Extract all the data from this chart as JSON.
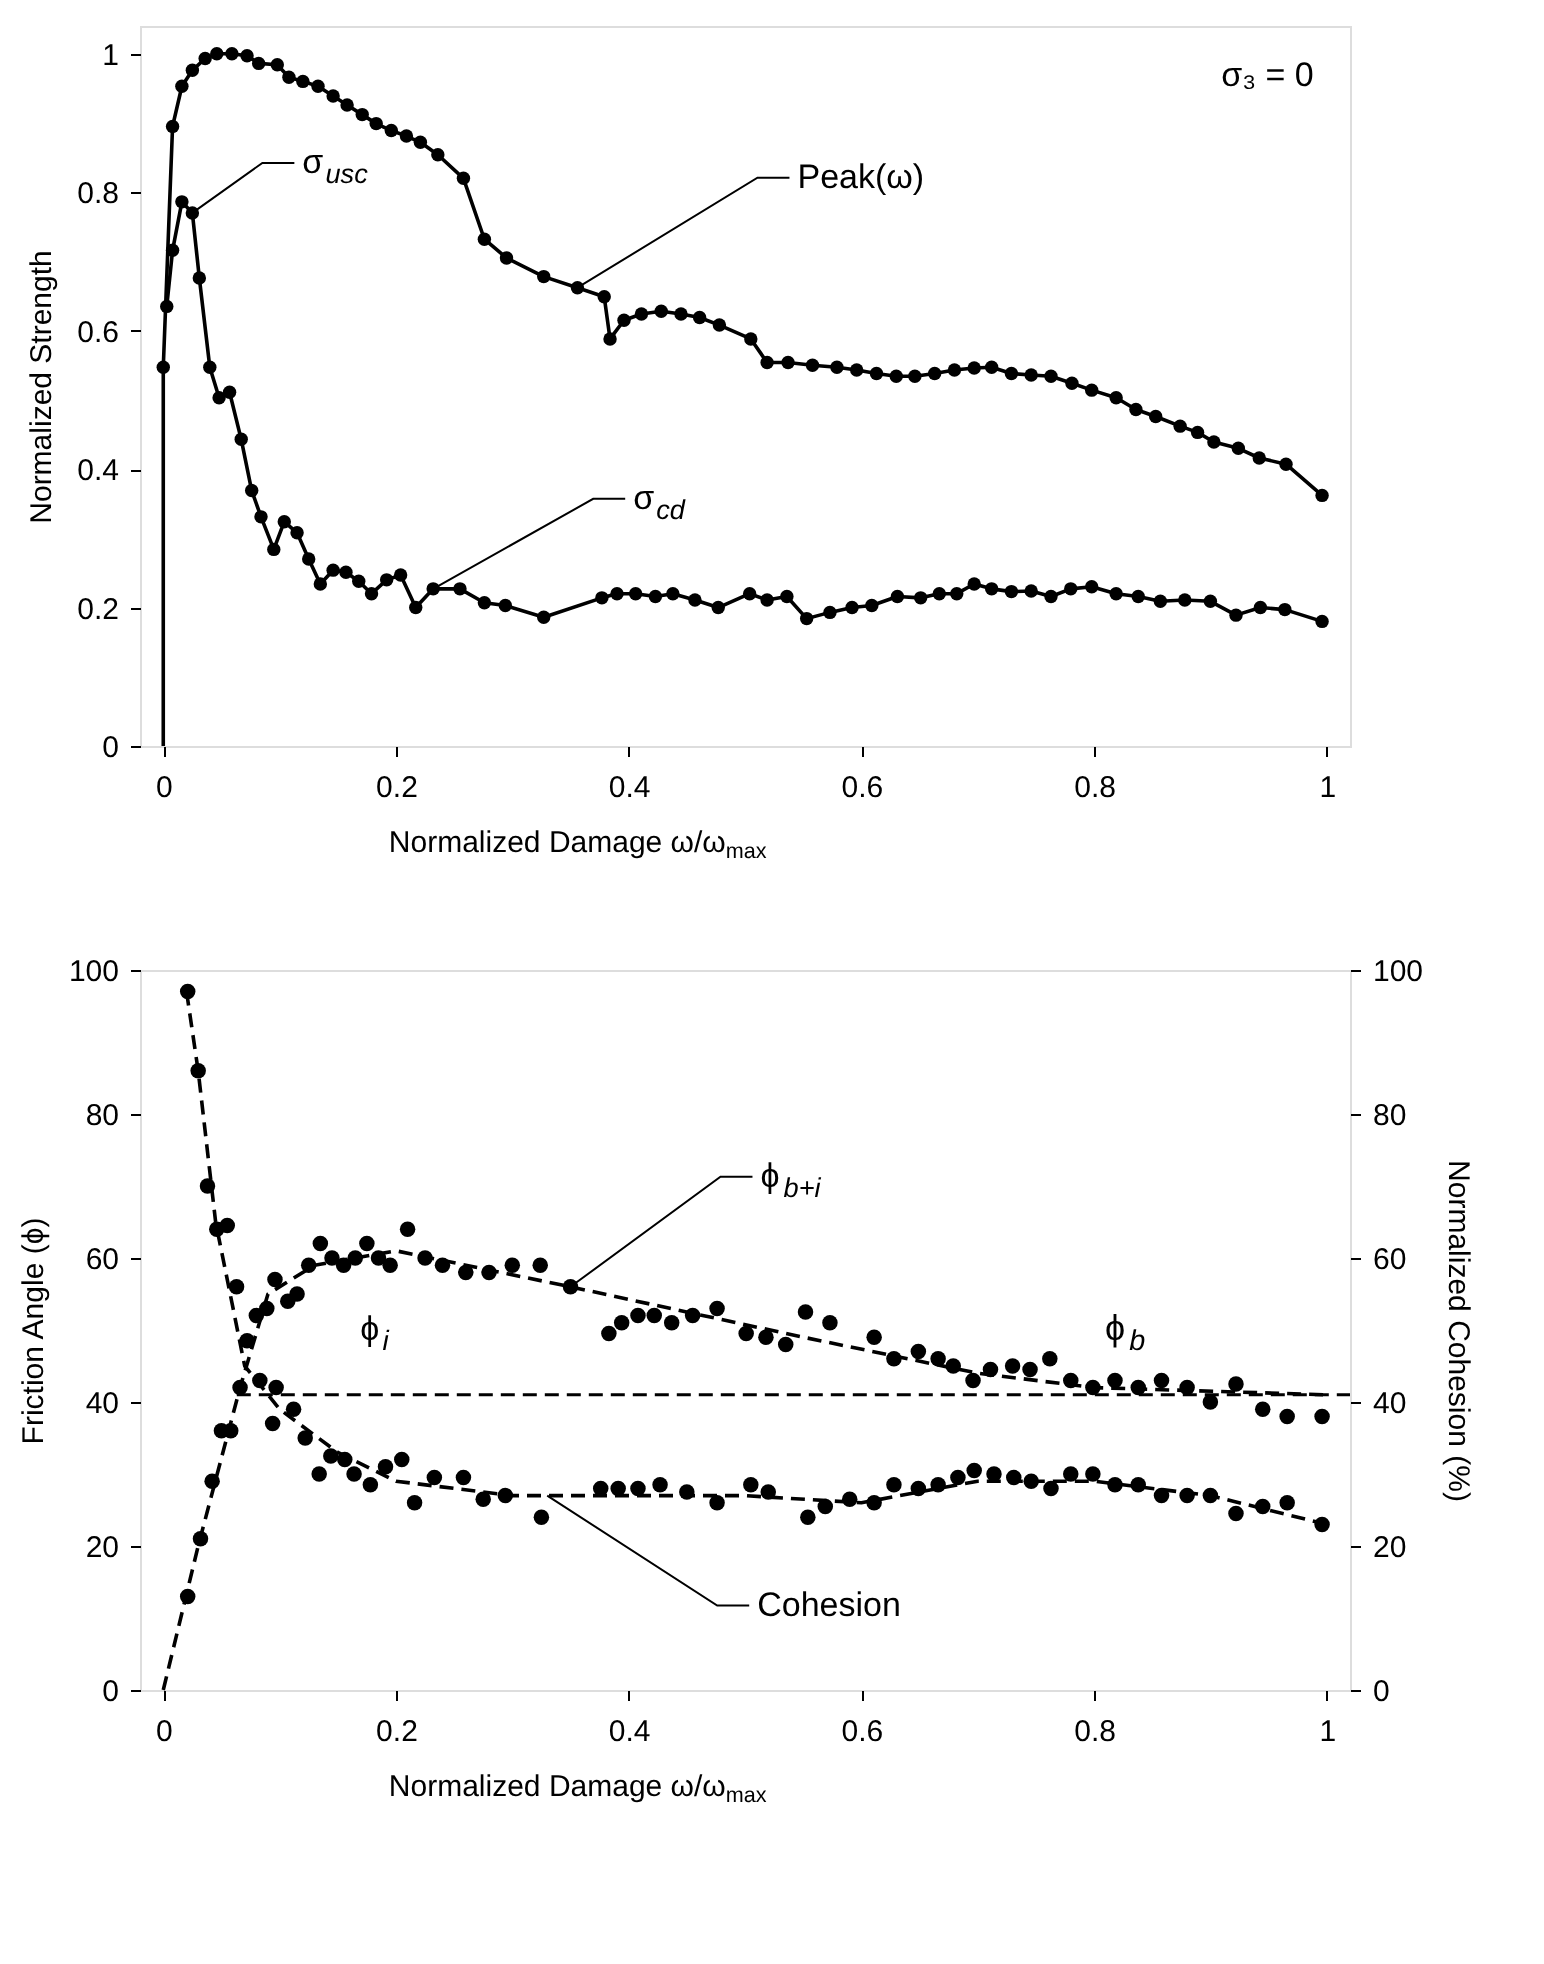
{
  "chart_data": [
    {
      "type": "line",
      "xlabel": "Normalized Damage ω/ω$_{max}$",
      "ylabel": "Normalized Strength",
      "xlim": [
        -0.02,
        1.02
      ],
      "ylim": [
        0,
        1.04
      ],
      "xticks": [
        0,
        0.2,
        0.4,
        0.6,
        0.8,
        1
      ],
      "yticks": [
        0,
        0.2,
        0.4,
        0.6,
        0.8,
        1
      ],
      "grid": false,
      "series": [
        {
          "color": "#000000",
          "x": [
            0,
            0
          ],
          "values": [
            0,
            0.547
          ]
        },
        {
          "marker": "circle",
          "color": "#000000",
          "x": [
            0,
            0.008,
            0.016,
            0.025,
            0.036,
            0.046,
            0.059,
            0.072,
            0.082,
            0.098,
            0.108,
            0.12,
            0.133,
            0.146,
            0.158,
            0.171,
            0.183,
            0.196,
            0.209,
            0.221,
            0.236,
            0.258,
            0.276,
            0.295,
            0.327,
            0.356,
            0.379,
            0.384,
            0.396,
            0.411,
            0.428,
            0.445,
            0.461,
            0.478,
            0.505,
            0.519,
            0.537,
            0.558,
            0.579,
            0.596,
            0.613,
            0.63,
            0.646,
            0.663,
            0.68,
            0.697,
            0.712,
            0.729,
            0.746,
            0.763,
            0.781,
            0.798,
            0.819,
            0.836,
            0.853,
            0.874,
            0.889,
            0.903,
            0.924,
            0.942,
            0.965,
            0.996
          ],
          "values": [
            0.547,
            0.895,
            0.953,
            0.976,
            0.993,
            1.0,
            1.0,
            0.997,
            0.986,
            0.984,
            0.966,
            0.96,
            0.953,
            0.939,
            0.926,
            0.912,
            0.899,
            0.889,
            0.881,
            0.872,
            0.854,
            0.82,
            0.732,
            0.705,
            0.678,
            0.662,
            0.649,
            0.588,
            0.615,
            0.624,
            0.628,
            0.624,
            0.619,
            0.608,
            0.588,
            0.554,
            0.554,
            0.55,
            0.547,
            0.543,
            0.538,
            0.534,
            0.534,
            0.538,
            0.543,
            0.546,
            0.547,
            0.538,
            0.536,
            0.534,
            0.524,
            0.514,
            0.503,
            0.486,
            0.476,
            0.462,
            0.453,
            0.439,
            0.43,
            0.416,
            0.407,
            0.362
          ]
        },
        {
          "marker": "circle",
          "color": "#000000",
          "x": [
            0.003,
            0.008,
            0.016,
            0.025,
            0.031,
            0.04,
            0.048,
            0.057,
            0.067,
            0.076,
            0.084,
            0.095,
            0.104,
            0.115,
            0.125,
            0.135,
            0.146,
            0.157,
            0.168,
            0.179,
            0.192,
            0.204,
            0.217,
            0.232,
            0.255,
            0.276,
            0.294,
            0.327,
            0.377,
            0.39,
            0.406,
            0.423,
            0.438,
            0.457,
            0.477,
            0.504,
            0.519,
            0.536,
            0.553,
            0.573,
            0.592,
            0.609,
            0.631,
            0.651,
            0.667,
            0.682,
            0.697,
            0.712,
            0.729,
            0.746,
            0.763,
            0.78,
            0.798,
            0.819,
            0.838,
            0.857,
            0.878,
            0.9,
            0.922,
            0.943,
            0.964,
            0.996
          ],
          "values": [
            0.635,
            0.716,
            0.786,
            0.77,
            0.676,
            0.547,
            0.503,
            0.511,
            0.443,
            0.369,
            0.331,
            0.284,
            0.324,
            0.308,
            0.27,
            0.234,
            0.254,
            0.251,
            0.238,
            0.22,
            0.24,
            0.247,
            0.2,
            0.227,
            0.227,
            0.207,
            0.203,
            0.186,
            0.214,
            0.22,
            0.22,
            0.216,
            0.22,
            0.211,
            0.2,
            0.22,
            0.211,
            0.216,
            0.184,
            0.193,
            0.2,
            0.203,
            0.216,
            0.214,
            0.22,
            0.22,
            0.234,
            0.227,
            0.223,
            0.224,
            0.216,
            0.227,
            0.23,
            0.22,
            0.216,
            0.209,
            0.211,
            0.209,
            0.189,
            0.2,
            0.197,
            0.18
          ]
        }
      ],
      "annotations": [
        {
          "text": "σ$_{usc}$",
          "x": 0.025,
          "y": 0.77
        },
        {
          "text": "Peak(ω)",
          "x": 0.356,
          "y": 0.662
        },
        {
          "text": "σ$_{cd}$",
          "x": 0.232,
          "y": 0.227
        },
        "σ₃ = 0"
      ]
    },
    {
      "type": "scatter",
      "xlabel": "Normalized Damage ω/ω$_{max}$",
      "ylabel": "Friction Angle (ϕ)",
      "y2label": "Normalized Cohesion (%)",
      "xlim": [
        -0.02,
        1.02
      ],
      "ylim": [
        0,
        100
      ],
      "y2lim": [
        0,
        100
      ],
      "xticks": [
        0,
        0.2,
        0.4,
        0.6,
        0.8,
        1
      ],
      "yticks": [
        0,
        20,
        40,
        60,
        80,
        100
      ],
      "y2ticks": [
        0,
        20,
        40,
        60,
        80,
        100
      ],
      "grid": false,
      "series": [
        {
          "marker": "circle",
          "color": "#000000",
          "x": [
            0.021,
            0.032,
            0.042,
            0.05,
            0.058,
            0.066,
            0.08,
            0.089,
            0.096,
            0.107,
            0.115,
            0.125,
            0.135,
            0.145,
            0.155,
            0.165,
            0.175,
            0.185,
            0.195,
            0.21,
            0.225,
            0.24,
            0.26,
            0.28,
            0.3,
            0.324,
            0.35,
            0.383,
            0.394,
            0.408,
            0.422,
            0.437,
            0.455,
            0.476,
            0.501,
            0.518,
            0.535,
            0.552,
            0.573,
            0.611,
            0.628,
            0.649,
            0.666,
            0.679,
            0.696,
            0.711,
            0.73,
            0.745,
            0.762,
            0.78,
            0.799,
            0.818,
            0.838,
            0.858,
            0.88,
            0.9,
            0.922,
            0.945,
            0.966,
            0.996
          ],
          "values": [
            13,
            21,
            29,
            36,
            36,
            42,
            52,
            53,
            57,
            54,
            55,
            59,
            62,
            60,
            59,
            60,
            62,
            60,
            59,
            64,
            60,
            59,
            58,
            58,
            59,
            59,
            56,
            49.5,
            51,
            52,
            52,
            51,
            52,
            53,
            49.5,
            49,
            48,
            52.5,
            51,
            49,
            46,
            47,
            46,
            45,
            43,
            44.5,
            45,
            44.5,
            46,
            43,
            42,
            43,
            42,
            43,
            42,
            40,
            42.5,
            39,
            38,
            38
          ]
        },
        {
          "marker": "circle",
          "color": "#000000",
          "axis": "y2",
          "x": [
            0.021,
            0.03,
            0.038,
            0.046,
            0.055,
            0.063,
            0.072,
            0.083,
            0.094,
            0.097,
            0.112,
            0.122,
            0.134,
            0.144,
            0.156,
            0.164,
            0.178,
            0.191,
            0.205,
            0.216,
            0.233,
            0.258,
            0.275,
            0.294,
            0.325,
            0.376,
            0.391,
            0.408,
            0.427,
            0.45,
            0.476,
            0.505,
            0.52,
            0.554,
            0.569,
            0.59,
            0.611,
            0.628,
            0.649,
            0.666,
            0.683,
            0.697,
            0.714,
            0.731,
            0.746,
            0.763,
            0.78,
            0.799,
            0.818,
            0.838,
            0.858,
            0.88,
            0.9,
            0.922,
            0.945,
            0.966,
            0.996
          ],
          "values": [
            97,
            86,
            70,
            64,
            64.5,
            56,
            48.5,
            43,
            37,
            42,
            39,
            35,
            30,
            32.5,
            32,
            30,
            28.5,
            31,
            32,
            26,
            29.5,
            29.5,
            26.5,
            27,
            24,
            28,
            28,
            28,
            28.5,
            27.5,
            26,
            28.5,
            27.5,
            24,
            25.5,
            26.5,
            26,
            28.5,
            28,
            28.5,
            29.5,
            30.5,
            30,
            29.5,
            29,
            28,
            30,
            30,
            28.5,
            28.5,
            27,
            27,
            27,
            24.5,
            25.5,
            26,
            23
          ]
        },
        {
          "type": "line",
          "marker": "none",
          "line_style": "dashed",
          "color": "#000000",
          "x": [
            0,
            0.03,
            0.066,
            0.09,
            0.13,
            0.2,
            0.35,
            0.55,
            0.7,
            0.8,
            1.0
          ],
          "values": [
            0,
            20,
            42,
            55,
            59,
            61,
            56,
            49,
            44,
            42,
            41
          ]
        },
        {
          "type": "line",
          "marker": "none",
          "line_style": "dashed",
          "color": "#000000",
          "axis": "y2",
          "x": [
            0.02,
            0.03,
            0.045,
            0.07,
            0.1,
            0.15,
            0.2,
            0.3,
            0.4,
            0.5,
            0.6,
            0.7,
            0.8,
            0.9,
            1.0
          ],
          "values": [
            97,
            86,
            65,
            45,
            39,
            33,
            29,
            27,
            27,
            27,
            26,
            29,
            29,
            27,
            23
          ]
        }
      ],
      "ref_lines": [
        {
          "axis": "y",
          "value": 41,
          "label": "ϕ$_{b}$",
          "line_style": "dashed",
          "color": "#000000"
        }
      ],
      "annotations": [
        {
          "text": "ϕ$_{b+i}$",
          "x": 0.35,
          "y": 56
        },
        "ϕ$_{i}$",
        {
          "text": "Cohesion",
          "x": 0.33,
          "y": 27
        }
      ]
    }
  ]
}
